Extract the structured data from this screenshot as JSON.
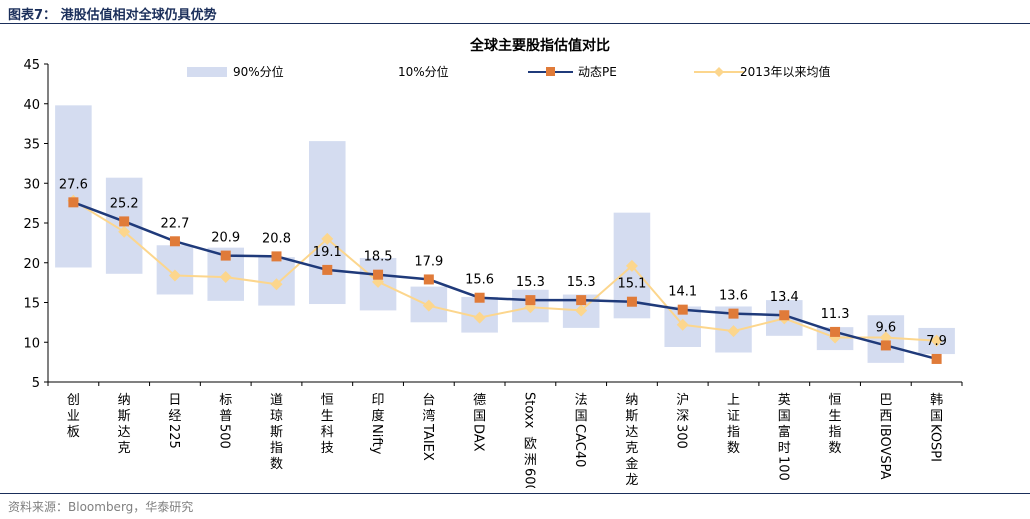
{
  "figure": {
    "title": "图表7： 港股估值相对全球仍具优势",
    "source": "资料来源：Bloomberg，华泰研究"
  },
  "colors": {
    "band": "#d4dcf0",
    "pe_line": "#1f3a7a",
    "pe_marker": "#e07b39",
    "avg": "#fcd68d",
    "header": "#1a2e5a"
  },
  "chart_data": {
    "type": "bar",
    "title": "全球主要股指估值对比",
    "categories": [
      "创业板",
      "纳斯达克",
      "日经225",
      "标普500",
      "道琼斯指数",
      "恒生科技",
      "印度Nifty",
      "台湾TAIEX",
      "德国DAX",
      "Stoxx欧洲600",
      "法国CAC40",
      "纳斯达克金龙",
      "沪深300",
      "上证指数",
      "英国富时100",
      "恒生指数",
      "巴西IBOVSPA",
      "韩国KOSPI"
    ],
    "series": [
      {
        "name": "90%分位",
        "kind": "band-top",
        "values": [
          39.8,
          30.7,
          22.2,
          21.9,
          20.7,
          35.3,
          20.6,
          17.0,
          15.7,
          16.6,
          16.0,
          26.3,
          14.5,
          14.5,
          15.3,
          11.9,
          13.4,
          11.8
        ]
      },
      {
        "name": "10%分位",
        "kind": "band-bottom",
        "values": [
          19.4,
          18.6,
          16.0,
          15.2,
          14.6,
          14.8,
          14.0,
          12.5,
          11.2,
          12.5,
          11.8,
          13.0,
          9.4,
          8.7,
          10.8,
          9.0,
          7.4,
          8.5
        ]
      },
      {
        "name": "动态PE",
        "kind": "line-marker",
        "values": [
          27.6,
          25.2,
          22.7,
          20.9,
          20.8,
          19.1,
          18.5,
          17.9,
          15.6,
          15.3,
          15.3,
          15.1,
          14.1,
          13.6,
          13.4,
          11.3,
          9.6,
          7.9
        ]
      },
      {
        "name": "2013年以来均值",
        "kind": "line-diamond",
        "values": [
          27.8,
          23.9,
          18.4,
          18.2,
          17.3,
          23.0,
          17.6,
          14.6,
          13.1,
          14.4,
          14.0,
          19.6,
          12.2,
          11.4,
          13.0,
          10.6,
          10.6,
          10.2
        ]
      }
    ],
    "pe_labels": [
      "27.6",
      "25.2",
      "22.7",
      "20.9",
      "20.8",
      "19.1",
      "18.5",
      "17.9",
      "15.6",
      "15.3",
      "15.3",
      "15.1",
      "14.1",
      "13.6",
      "13.4",
      "11.3",
      "9.6",
      "7.9"
    ],
    "ylim": [
      5,
      45
    ],
    "yticks": [
      "5",
      "10",
      "15",
      "20",
      "25",
      "30",
      "35",
      "40",
      "45"
    ],
    "xlabel": "",
    "ylabel": "",
    "legend_position": "top",
    "grid": false
  }
}
